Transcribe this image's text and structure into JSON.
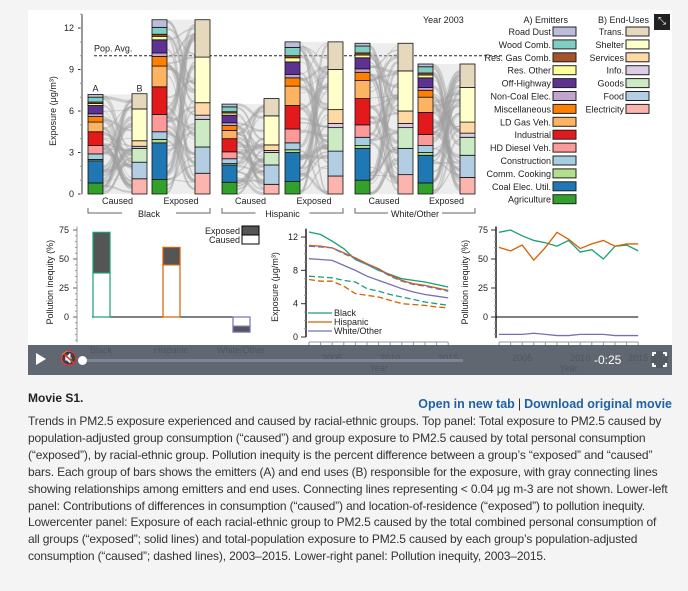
{
  "video": {
    "year_label": "Year 2003",
    "pop_avg_label": "Pop. Avg.",
    "top_ylabel": "Exposure (μg/m³)",
    "top_yticks": [
      0,
      3,
      6,
      9,
      12
    ],
    "pop_avg": 10,
    "bar_letters": [
      "A",
      "B"
    ],
    "bar_labels": [
      "Caused",
      "Exposed"
    ],
    "groups": [
      "Black",
      "Hispanic",
      "White/Other"
    ],
    "emitters_title": "A) Emitters",
    "enduses_title": "B) End-Uses",
    "emitters": [
      {
        "name": "Road Dust",
        "color": "#bcbddc"
      },
      {
        "name": "Wood Comb.",
        "color": "#80cdc1"
      },
      {
        "name": "Res. Gas Comb.",
        "color": "#a6522b"
      },
      {
        "name": "Res. Other",
        "color": "#ffff99"
      },
      {
        "name": "Off-Highway",
        "color": "#5e3292"
      },
      {
        "name": "Non-Coal Elec.",
        "color": "#c2a5cf"
      },
      {
        "name": "Miscellaneous",
        "color": "#ff7f00"
      },
      {
        "name": "LD Gas Veh.",
        "color": "#fdb462"
      },
      {
        "name": "Industrial",
        "color": "#e31a1c"
      },
      {
        "name": "HD Diesel Veh.",
        "color": "#fb9a99"
      },
      {
        "name": "Construction",
        "color": "#a6cee3"
      },
      {
        "name": "Comm. Cooking",
        "color": "#b2df8a"
      },
      {
        "name": "Coal Elec. Util.",
        "color": "#1f78b4"
      },
      {
        "name": "Agriculture",
        "color": "#33a02c"
      }
    ],
    "enduses": [
      {
        "name": "Trans.",
        "color": "#e5d8bd"
      },
      {
        "name": "Shelter",
        "color": "#ffffcc"
      },
      {
        "name": "Services",
        "color": "#fed9a6"
      },
      {
        "name": "Info.",
        "color": "#decbe4"
      },
      {
        "name": "Goods",
        "color": "#ccebc5"
      },
      {
        "name": "Food",
        "color": "#b3cde3"
      },
      {
        "name": "Electricity",
        "color": "#fbb4ae"
      }
    ],
    "bars": [
      {
        "group": "Black",
        "kind": "Caused",
        "emitters_bottom_up": [
          0.8,
          1.6,
          0.1,
          0.4,
          0.6,
          1.0,
          0.7,
          0.4,
          0.2,
          0.6,
          0.15,
          0.1,
          0.35,
          0.2
        ],
        "enduses_bottom_up": [
          1.1,
          1.2,
          1.0,
          0.15,
          0.4,
          2.3,
          1.1
        ]
      },
      {
        "group": "Black",
        "kind": "Exposed",
        "emitters_bottom_up": [
          1.05,
          2.65,
          0.25,
          0.55,
          1.25,
          2.0,
          1.5,
          0.7,
          0.25,
          0.95,
          0.25,
          0.15,
          0.5,
          0.55
        ],
        "enduses_bottom_up": [
          1.5,
          1.9,
          2.0,
          0.3,
          0.9,
          3.3,
          2.7
        ]
      },
      {
        "group": "Hispanic",
        "kind": "Caused",
        "emitters_bottom_up": [
          0.85,
          1.25,
          0.1,
          0.35,
          0.5,
          0.95,
          0.6,
          0.35,
          0.2,
          0.55,
          0.15,
          0.1,
          0.35,
          0.2
        ],
        "enduses_bottom_up": [
          0.7,
          1.4,
          0.9,
          0.15,
          0.4,
          2.1,
          1.25
        ]
      },
      {
        "group": "Hispanic",
        "kind": "Exposed",
        "emitters_bottom_up": [
          0.9,
          2.1,
          0.2,
          0.5,
          1.0,
          1.7,
          1.4,
          0.6,
          0.25,
          0.9,
          0.3,
          0.15,
          0.6,
          0.4
        ],
        "enduses_bottom_up": [
          1.3,
          1.8,
          1.7,
          0.3,
          1.0,
          2.9,
          2.0
        ]
      },
      {
        "group": "White/Other",
        "kind": "Caused",
        "emitters_bottom_up": [
          1.0,
          2.3,
          0.2,
          0.6,
          0.9,
          1.9,
          1.3,
          0.6,
          0.25,
          0.8,
          0.2,
          0.15,
          0.5,
          0.2
        ],
        "enduses_bottom_up": [
          1.4,
          1.9,
          1.5,
          0.3,
          0.9,
          2.9,
          2.0
        ]
      },
      {
        "group": "White/Other",
        "kind": "Exposed",
        "emitters_bottom_up": [
          0.8,
          2.0,
          0.2,
          0.5,
          0.8,
          1.6,
          1.1,
          0.5,
          0.2,
          0.7,
          0.2,
          0.15,
          0.45,
          0.2
        ],
        "enduses_bottom_up": [
          1.2,
          1.6,
          1.3,
          0.3,
          0.8,
          2.5,
          1.7
        ]
      }
    ],
    "series_colors": {
      "Black": "#1b9e77",
      "Hispanic": "#d95f02",
      "White/Other": "#7570b3"
    },
    "inequity": {
      "ylabel": "Pollution inequity (%)",
      "yticks": [
        0,
        25,
        50,
        75
      ],
      "legend": [
        "Exposed",
        "Caused"
      ],
      "legend_colors": {
        "Exposed": "#555555",
        "Caused": "#ffffff"
      },
      "groups": [
        "Black",
        "Hispanic",
        "White/Other"
      ],
      "caused": [
        38,
        45,
        -8
      ],
      "exposed": [
        35,
        15,
        -5
      ]
    },
    "exposure_trend": {
      "ylabel": "Exposure (μg/m³)",
      "xlabel": "Year",
      "yticks": [
        0,
        4,
        8,
        12
      ],
      "xticks": [
        2005,
        2010,
        2015
      ],
      "years": [
        2003,
        2004,
        2005,
        2006,
        2007,
        2008,
        2009,
        2010,
        2011,
        2012,
        2013,
        2014,
        2015
      ],
      "legend": [
        "Black",
        "Hispanic",
        "White/Other"
      ],
      "exposed": {
        "Black": [
          12.6,
          12.3,
          11.5,
          10.6,
          9.3,
          8.7,
          8.0,
          7.5,
          7.0,
          6.8,
          6.6,
          6.3,
          6.0
        ],
        "Hispanic": [
          11.0,
          10.9,
          10.7,
          10.1,
          9.5,
          8.8,
          8.2,
          7.4,
          6.8,
          6.4,
          6.2,
          5.9,
          5.6
        ],
        "White/Other": [
          9.4,
          9.3,
          9.2,
          8.6,
          8.0,
          7.3,
          6.8,
          6.3,
          5.8,
          5.4,
          5.1,
          4.9,
          4.7
        ]
      },
      "caused": {
        "Black": [
          7.3,
          7.2,
          7.1,
          6.8,
          6.6,
          5.8,
          5.5,
          5.1,
          4.8,
          4.5,
          4.2,
          4.0,
          3.8
        ],
        "Hispanic": [
          6.9,
          6.7,
          6.7,
          6.1,
          5.2,
          5.0,
          4.8,
          4.4,
          4.0,
          3.9,
          3.8,
          3.6,
          3.5
        ],
        "White/Other": [
          10.9,
          10.8,
          10.7,
          10.0,
          9.4,
          8.7,
          8.1,
          7.3,
          6.7,
          6.3,
          6.1,
          5.8,
          5.5
        ]
      }
    },
    "inequity_trend": {
      "ylabel": "Pollution inequity (%)",
      "xlabel": "Year",
      "yticks": [
        0,
        25,
        50,
        75
      ],
      "xticks": [
        2005,
        2010,
        2015
      ],
      "years": [
        2003,
        2004,
        2005,
        2006,
        2007,
        2008,
        2009,
        2010,
        2011,
        2012,
        2013,
        2014,
        2015
      ],
      "values": {
        "Black": [
          73,
          75,
          70,
          66,
          64,
          61,
          66,
          56,
          58,
          50,
          61,
          62,
          57
        ],
        "Hispanic": [
          60,
          57,
          62,
          49,
          60,
          73,
          67,
          59,
          63,
          66,
          61,
          63,
          63
        ],
        "White/Other": [
          -15,
          -15,
          -15,
          -14,
          -15,
          -16,
          -16,
          -15,
          -15,
          -15,
          -16,
          -16,
          -16
        ]
      }
    },
    "controls": {
      "time_remaining": "-0:25",
      "progress": 0.0,
      "muted": true,
      "icons": [
        "play-icon",
        "mute-icon",
        "fullscreen-icon",
        "expand-icon"
      ]
    }
  },
  "caption": {
    "title": "Movie S1.",
    "open_link": "Open in new tab",
    "separator": "|",
    "download_link": "Download original movie",
    "text": "Trends in PM2.5 exposure experienced and caused by racial-ethnic groups. Top panel: Total exposure to PM2.5 caused by population-adjusted group consumption (“caused”) and group exposure to PM2.5 caused by total personal consumption (“exposed”), by racial-ethnic group. Pollution inequity is the percent difference between a group’s “exposed” and “caused” bars. Each group of bars shows the emitters (A) and end uses (B) responsible for the exposure, with gray connecting lines showing relationships among emitters and end uses. Connecting lines representing < 0.04 μg m-3 are not shown. Lower-left panel: Contributions of differences in consumption (“caused”) and location-of-residence (“exposed”) to pollution inequity. Lowercenter panel: Exposure of each racial-ethnic group to PM2.5 caused by the total combined personal consumption of all groups (“exposed”; solid lines) and total-population exposure to PM2.5 caused by each group’s population-adjusted consumption (“caused”; dashed lines), 2003–2015. Lower-right panel: Pollution inequity, 2003–2015."
  }
}
